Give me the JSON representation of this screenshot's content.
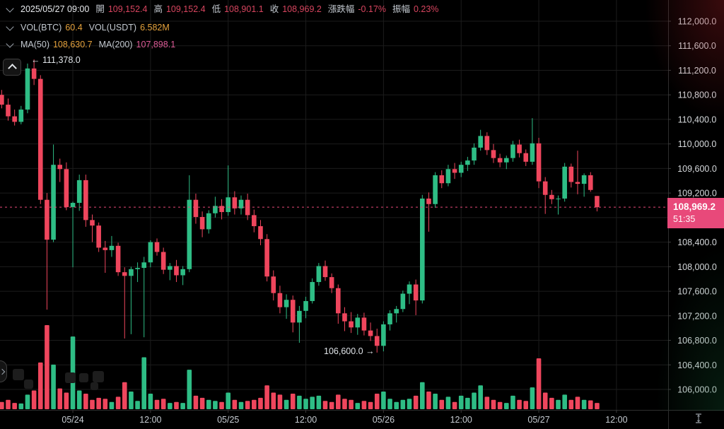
{
  "header": {
    "row1": {
      "datetime": "2025/05/27 09:00",
      "open_label": "開",
      "open": "109,152.4",
      "high_label": "高",
      "high": "109,152.4",
      "low_label": "低",
      "low": "108,901.1",
      "close_label": "收",
      "close": "108,969.2",
      "change_label": "漲跌幅",
      "change": "-0.17%",
      "amplitude_label": "振幅",
      "amplitude": "0.23%"
    },
    "row2": {
      "vol_btc_label": "VOL(BTC)",
      "vol_btc": "60.4",
      "vol_usdt_label": "VOL(USDT)",
      "vol_usdt": "6.582M"
    },
    "row3": {
      "ma50_label": "MA(50)",
      "ma50": "108,630.7",
      "ma200_label": "MA(200)",
      "ma200": "107,898.1"
    }
  },
  "annotations": {
    "high": "← 111,378.0",
    "low": "106,600.0 →"
  },
  "price_badge": {
    "price": "108,969.2",
    "countdown": "51:35"
  },
  "colors": {
    "up": "#2ebd85",
    "down": "#ef465d",
    "badge": "#e8497a",
    "grid": "#1c1c1c",
    "axis_line": "#2e2e2e",
    "price_text": "#d7dadd",
    "time_text": "#c6cbd1",
    "orange_value": "#e5a23c",
    "ma200_value": "#dd5b97",
    "legend_red": "#d8455f"
  },
  "chart_data": {
    "type": "candlestick",
    "title": "",
    "interval": "1h",
    "ylim": [
      106000,
      112000
    ],
    "y_tick_step": 400,
    "y_tick_suffix": ".0",
    "x_tick_labels": [
      "05/24",
      "12:00",
      "05/25",
      "12:00",
      "05/26",
      "12:00",
      "05/27",
      "12:00"
    ],
    "x_tick_indices": [
      12,
      24,
      36,
      48,
      60,
      72,
      84,
      96
    ],
    "current_price": 108969.2,
    "marked_high": 111378.0,
    "marked_low": 106600.0,
    "volume_unit": "BTC",
    "ohlcv": [
      [
        110900,
        111020,
        110720,
        110800,
        80
      ],
      [
        110800,
        110880,
        110580,
        110640,
        70
      ],
      [
        110640,
        110740,
        110380,
        110450,
        90
      ],
      [
        110450,
        110560,
        110300,
        110360,
        60
      ],
      [
        110360,
        110620,
        110320,
        110560,
        55
      ],
      [
        110560,
        111310,
        110500,
        111230,
        140
      ],
      [
        111230,
        111378,
        110960,
        111060,
        180
      ],
      [
        111060,
        111120,
        109020,
        109090,
        450
      ],
      [
        109090,
        109200,
        107300,
        108440,
        810
      ],
      [
        108440,
        109990,
        108400,
        109660,
        430
      ],
      [
        109660,
        109760,
        109380,
        109590,
        200
      ],
      [
        109590,
        109700,
        108920,
        108970,
        160
      ],
      [
        108970,
        109060,
        107990,
        109040,
        700
      ],
      [
        109040,
        109500,
        108910,
        109410,
        180
      ],
      [
        109410,
        109500,
        108650,
        108760,
        150
      ],
      [
        108760,
        108850,
        108400,
        108670,
        90
      ],
      [
        108670,
        108720,
        108240,
        108310,
        110
      ],
      [
        108310,
        108420,
        107900,
        108270,
        100
      ],
      [
        108270,
        108500,
        108160,
        108340,
        70
      ],
      [
        108340,
        108390,
        107850,
        107910,
        120
      ],
      [
        107910,
        107990,
        106830,
        107850,
        260
      ],
      [
        107850,
        108000,
        106900,
        107960,
        170
      ],
      [
        107960,
        108070,
        107750,
        107980,
        80
      ],
      [
        107980,
        108160,
        106850,
        108070,
        500
      ],
      [
        108070,
        108430,
        107990,
        108400,
        150
      ],
      [
        108400,
        108460,
        108180,
        108240,
        90
      ],
      [
        108240,
        108310,
        107880,
        107950,
        100
      ],
      [
        107950,
        108060,
        107780,
        108010,
        60
      ],
      [
        108010,
        108110,
        107750,
        107860,
        70
      ],
      [
        107860,
        108010,
        107700,
        107960,
        60
      ],
      [
        107960,
        109490,
        107910,
        109090,
        380
      ],
      [
        109090,
        109190,
        108700,
        108810,
        130
      ],
      [
        108810,
        108900,
        108480,
        108610,
        110
      ],
      [
        108610,
        108920,
        108540,
        108870,
        90
      ],
      [
        108870,
        109140,
        108800,
        108990,
        80
      ],
      [
        108990,
        109100,
        108770,
        108890,
        70
      ],
      [
        108890,
        109650,
        108830,
        109130,
        160
      ],
      [
        109130,
        109230,
        108850,
        108950,
        90
      ],
      [
        108950,
        109160,
        108850,
        109090,
        70
      ],
      [
        109090,
        109190,
        108760,
        108840,
        80
      ],
      [
        108840,
        108930,
        108560,
        108660,
        90
      ],
      [
        108660,
        108760,
        108350,
        108450,
        110
      ],
      [
        108450,
        108530,
        107760,
        107840,
        230
      ],
      [
        107840,
        107940,
        107450,
        107570,
        160
      ],
      [
        107570,
        107690,
        107240,
        107340,
        140
      ],
      [
        107340,
        107550,
        107150,
        107460,
        90
      ],
      [
        107460,
        107530,
        106930,
        107090,
        150
      ],
      [
        107090,
        107360,
        106760,
        107280,
        130
      ],
      [
        107280,
        107510,
        107160,
        107440,
        100
      ],
      [
        107440,
        107810,
        107400,
        107750,
        120
      ],
      [
        107750,
        108060,
        107690,
        108010,
        130
      ],
      [
        108010,
        108100,
        107770,
        107830,
        80
      ],
      [
        107830,
        107890,
        107570,
        107650,
        70
      ],
      [
        107650,
        107710,
        107070,
        107240,
        140
      ],
      [
        107240,
        107340,
        106950,
        107110,
        100
      ],
      [
        107110,
        107260,
        106920,
        107010,
        90
      ],
      [
        107010,
        107230,
        106890,
        107170,
        60
      ],
      [
        107170,
        107250,
        106880,
        106960,
        80
      ],
      [
        106960,
        107090,
        106790,
        106870,
        70
      ],
      [
        106870,
        106990,
        106600,
        106710,
        150
      ],
      [
        106710,
        107110,
        106620,
        107060,
        170
      ],
      [
        107060,
        107290,
        106960,
        107240,
        100
      ],
      [
        107240,
        107360,
        107090,
        107310,
        70
      ],
      [
        107310,
        107610,
        107260,
        107560,
        90
      ],
      [
        107560,
        107760,
        107390,
        107710,
        100
      ],
      [
        107710,
        107790,
        107210,
        107450,
        130
      ],
      [
        107450,
        109170,
        107400,
        109110,
        260
      ],
      [
        109110,
        109210,
        108570,
        109020,
        170
      ],
      [
        109020,
        109540,
        108960,
        109490,
        150
      ],
      [
        109490,
        109570,
        109280,
        109360,
        90
      ],
      [
        109360,
        109660,
        109310,
        109590,
        120
      ],
      [
        109590,
        109690,
        109430,
        109530,
        70
      ],
      [
        109530,
        109710,
        109460,
        109660,
        130
      ],
      [
        109660,
        109790,
        109560,
        109730,
        110
      ],
      [
        109730,
        110010,
        109660,
        109940,
        160
      ],
      [
        109940,
        110230,
        109890,
        110130,
        230
      ],
      [
        110130,
        110190,
        109820,
        109900,
        120
      ],
      [
        109900,
        110000,
        109690,
        109770,
        90
      ],
      [
        109770,
        109840,
        109620,
        109700,
        70
      ],
      [
        109700,
        109810,
        109590,
        109770,
        60
      ],
      [
        109770,
        110050,
        109710,
        109990,
        130
      ],
      [
        109990,
        110070,
        109780,
        109850,
        90
      ],
      [
        109850,
        109910,
        109640,
        109710,
        80
      ],
      [
        109710,
        110420,
        109660,
        110010,
        210
      ],
      [
        110010,
        110100,
        109280,
        109390,
        490
      ],
      [
        109390,
        109460,
        108860,
        109170,
        160
      ],
      [
        109170,
        109250,
        109020,
        109100,
        110
      ],
      [
        109100,
        109160,
        108850,
        109110,
        90
      ],
      [
        109110,
        109690,
        109060,
        109630,
        140
      ],
      [
        109630,
        109680,
        109290,
        109380,
        90
      ],
      [
        109380,
        109890,
        109180,
        109350,
        120
      ],
      [
        109350,
        109520,
        109140,
        109490,
        90
      ],
      [
        109490,
        109540,
        109220,
        109250,
        85
      ],
      [
        109152.4,
        109152.4,
        108901.1,
        108969.2,
        60
      ]
    ]
  }
}
